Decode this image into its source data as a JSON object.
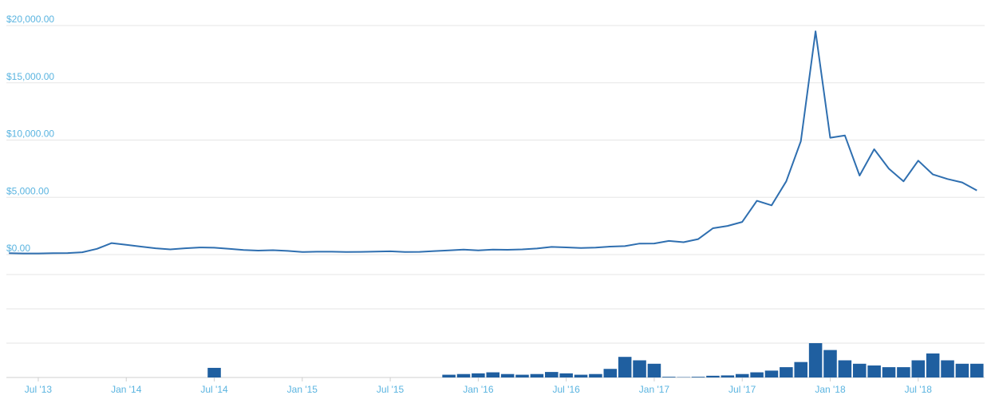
{
  "chart_data": [
    {
      "type": "line",
      "x": [
        "2013-05",
        "2013-06",
        "2013-07",
        "2013-08",
        "2013-09",
        "2013-10",
        "2013-11",
        "2013-12",
        "2014-01",
        "2014-02",
        "2014-03",
        "2014-04",
        "2014-05",
        "2014-06",
        "2014-07",
        "2014-08",
        "2014-09",
        "2014-10",
        "2014-11",
        "2014-12",
        "2015-01",
        "2015-02",
        "2015-03",
        "2015-04",
        "2015-05",
        "2015-06",
        "2015-07",
        "2015-08",
        "2015-09",
        "2015-10",
        "2015-11",
        "2015-12",
        "2016-01",
        "2016-02",
        "2016-03",
        "2016-04",
        "2016-05",
        "2016-06",
        "2016-07",
        "2016-08",
        "2016-09",
        "2016-10",
        "2016-11",
        "2016-12",
        "2017-01",
        "2017-02",
        "2017-03",
        "2017-04",
        "2017-05",
        "2017-06",
        "2017-07",
        "2017-08",
        "2017-09",
        "2017-10",
        "2017-11",
        "2017-12",
        "2018-01",
        "2018-02",
        "2018-03",
        "2018-04",
        "2018-05",
        "2018-06",
        "2018-07",
        "2018-08",
        "2018-09",
        "2018-10",
        "2018-11"
      ],
      "values": [
        120,
        100,
        95,
        120,
        130,
        200,
        500,
        1000,
        850,
        700,
        550,
        450,
        550,
        620,
        600,
        500,
        400,
        350,
        380,
        320,
        220,
        250,
        250,
        230,
        235,
        260,
        285,
        230,
        235,
        310,
        360,
        430,
        370,
        435,
        415,
        450,
        530,
        670,
        625,
        575,
        610,
        700,
        740,
        960,
        970,
        1190,
        1080,
        1350,
        2300,
        2500,
        2850,
        4700,
        4300,
        6400,
        9900,
        19500,
        10200,
        10400,
        6900,
        9200,
        7500,
        6400,
        8200,
        7000,
        6600,
        6300,
        5600
      ],
      "color": "#2f6fb0",
      "xlim": [
        "2013-05",
        "2018-11"
      ],
      "xticks": [
        {
          "value": "2013-07",
          "label": "Jul '13"
        },
        {
          "value": "2014-01",
          "label": "Jan '14"
        },
        {
          "value": "2014-07",
          "label": "Jul '14"
        },
        {
          "value": "2015-01",
          "label": "Jan '15"
        },
        {
          "value": "2015-07",
          "label": "Jul '15"
        },
        {
          "value": "2016-01",
          "label": "Jan '16"
        },
        {
          "value": "2016-07",
          "label": "Jul '16"
        },
        {
          "value": "2017-01",
          "label": "Jan '17"
        },
        {
          "value": "2017-07",
          "label": "Jul '17"
        },
        {
          "value": "2018-01",
          "label": "Jan '18"
        },
        {
          "value": "2018-07",
          "label": "Jul '18"
        }
      ],
      "ylim": [
        0,
        20000
      ],
      "yticks": [
        {
          "value": 0,
          "label": "$0.00"
        },
        {
          "value": 5000,
          "label": "$5,000.00"
        },
        {
          "value": 10000,
          "label": "$10,000.00"
        },
        {
          "value": 15000,
          "label": "$15,000.00"
        },
        {
          "value": 20000,
          "label": "$20,000.00"
        }
      ],
      "grid": true
    },
    {
      "type": "bar",
      "x": [
        "2013-05",
        "2013-06",
        "2013-07",
        "2013-08",
        "2013-09",
        "2013-10",
        "2013-11",
        "2013-12",
        "2014-01",
        "2014-02",
        "2014-03",
        "2014-04",
        "2014-05",
        "2014-06",
        "2014-07",
        "2014-08",
        "2014-09",
        "2014-10",
        "2014-11",
        "2014-12",
        "2015-01",
        "2015-02",
        "2015-03",
        "2015-04",
        "2015-05",
        "2015-06",
        "2015-07",
        "2015-08",
        "2015-09",
        "2015-10",
        "2015-11",
        "2015-12",
        "2016-01",
        "2016-02",
        "2016-03",
        "2016-04",
        "2016-05",
        "2016-06",
        "2016-07",
        "2016-08",
        "2016-09",
        "2016-10",
        "2016-11",
        "2016-12",
        "2017-01",
        "2017-02",
        "2017-03",
        "2017-04",
        "2017-05",
        "2017-06",
        "2017-07",
        "2017-08",
        "2017-09",
        "2017-10",
        "2017-11",
        "2017-12",
        "2018-01",
        "2018-02",
        "2018-03",
        "2018-04",
        "2018-05",
        "2018-06",
        "2018-07",
        "2018-08",
        "2018-09",
        "2018-10",
        "2018-11"
      ],
      "values": [
        0,
        0,
        0,
        0,
        0,
        0,
        0,
        0,
        0,
        0,
        0,
        0,
        0,
        0,
        2.8,
        0,
        0,
        0,
        0,
        0,
        0,
        0,
        0,
        0,
        0,
        0,
        0,
        0,
        0,
        0,
        0.8,
        1.0,
        1.2,
        1.5,
        1.0,
        0.8,
        1.0,
        1.6,
        1.2,
        0.8,
        1.0,
        2.5,
        6,
        5,
        4,
        0.2,
        0.1,
        0.2,
        0.5,
        0.6,
        1.0,
        1.5,
        2.0,
        3.0,
        4.5,
        10,
        8,
        5,
        4,
        3.5,
        3,
        3,
        5,
        7,
        5,
        4,
        4
      ],
      "color": "#1f5fa0",
      "ylim": [
        0,
        30
      ]
    }
  ]
}
